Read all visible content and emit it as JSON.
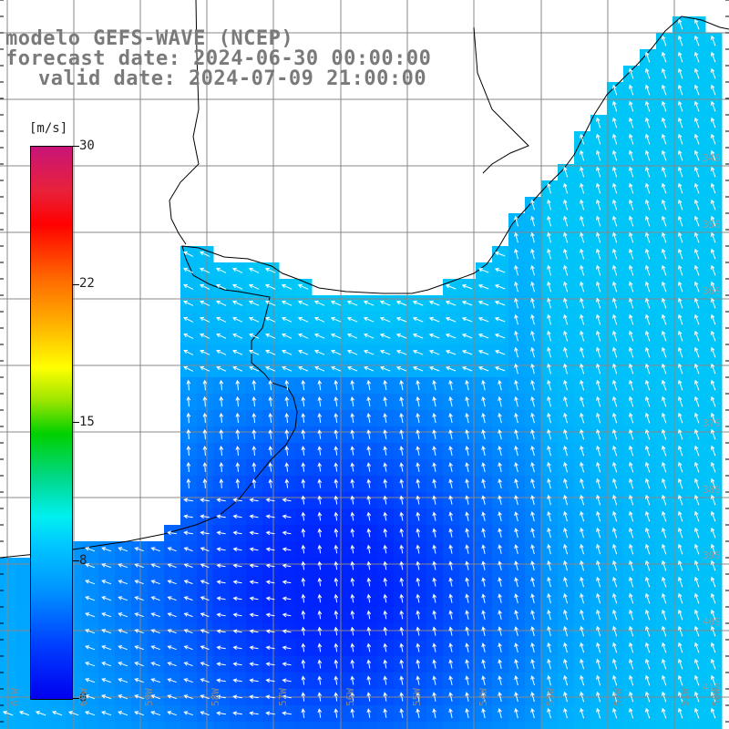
{
  "title": {
    "model": "modelo GEFS-WAVE (NCEP)",
    "forecast": "forecast date: 2024-06-30 00:00:00",
    "valid": "valid date: 2024-07-09 21:00:00"
  },
  "colorbar": {
    "unit": "[m/s]",
    "ticks": [
      "30",
      "22",
      "15",
      "8",
      "0"
    ],
    "tick_values": [
      30,
      22,
      15,
      8,
      0
    ],
    "range": [
      0,
      30
    ]
  },
  "axes": {
    "lon_labels": [
      "61W",
      "60W",
      "59W",
      "58W",
      "57W",
      "56W",
      "55W",
      "54W",
      "53W",
      "52W",
      "51W",
      "50W"
    ],
    "lat_labels": [
      "34S",
      "35S",
      "36S",
      "37S",
      "38S",
      "39S",
      "40S",
      "41S"
    ]
  },
  "colors": {
    "land": "#ffffff",
    "grid": "#888888",
    "coast": "#000000",
    "arrow": "#ffffff",
    "title_text": "#7a7a7a"
  }
}
